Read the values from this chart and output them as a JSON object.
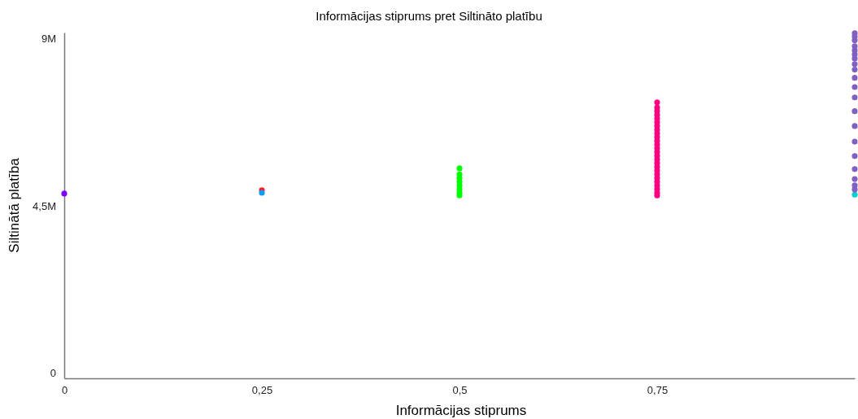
{
  "chart_data": {
    "type": "scatter",
    "title": "Informācijas stiprums pret Siltināto platību",
    "xlabel": "Informācijas stiprums",
    "ylabel": "Siltinātā platība",
    "xlim": [
      0,
      1
    ],
    "xticks": [
      0,
      {
        "value": 0.25,
        "label": "0,25"
      },
      {
        "value": 0.5,
        "label": "0,5"
      },
      {
        "value": 0.75,
        "label": "0,75"
      }
    ],
    "ylim": [
      -150000,
      9170000
    ],
    "yticks": [
      0,
      {
        "value": 4500000,
        "label": "4,5M"
      },
      {
        "value": 9000000,
        "label": "9M"
      }
    ],
    "grid": false,
    "marker": "circle",
    "series": [
      {
        "color": "#8000ff",
        "x": [
          0
        ],
        "values": [
          4830000
        ]
      },
      {
        "color": "#ff2020",
        "x": [
          0.25
        ],
        "values": [
          4920000
        ]
      },
      {
        "color": "#0a9bff",
        "x": [
          0.25
        ],
        "values": [
          4850000
        ]
      },
      {
        "color": "#00ff00",
        "x": [
          0.5,
          0.5,
          0.5,
          0.5,
          0.5,
          0.5,
          0.5,
          0.5
        ],
        "values": [
          4780000,
          4850000,
          4950000,
          5050000,
          5150000,
          5250000,
          5350000,
          5510000
        ]
      },
      {
        "color": "#ff0080",
        "x": [
          0.75,
          0.75,
          0.75,
          0.75,
          0.75,
          0.75,
          0.75,
          0.75,
          0.75,
          0.75,
          0.75,
          0.75,
          0.75,
          0.75,
          0.75,
          0.75,
          0.75,
          0.75,
          0.75,
          0.75,
          0.75,
          0.75,
          0.75,
          0.75,
          0.75,
          0.75
        ],
        "values": [
          4780000,
          4850000,
          4950000,
          5050000,
          5150000,
          5250000,
          5350000,
          5450000,
          5550000,
          5650000,
          5750000,
          5850000,
          5950000,
          6050000,
          6150000,
          6250000,
          6350000,
          6450000,
          6550000,
          6650000,
          6750000,
          6850000,
          6950000,
          7050000,
          7150000,
          7290000
        ]
      },
      {
        "color": "#00d0d0",
        "x": [
          1
        ],
        "values": [
          4800000
        ]
      },
      {
        "color": "#8060c0",
        "x": [
          1,
          1,
          1,
          1,
          1,
          1,
          1,
          1,
          1,
          1,
          1,
          1,
          1,
          1,
          1,
          1,
          1,
          1,
          1,
          1
        ],
        "values": [
          4940000,
          5050000,
          5220000,
          5490000,
          5840000,
          6230000,
          6650000,
          7050000,
          7420000,
          7700000,
          7950000,
          8170000,
          8320000,
          8470000,
          8580000,
          8690000,
          8800000,
          8960000,
          9060000,
          9150000
        ]
      }
    ]
  }
}
